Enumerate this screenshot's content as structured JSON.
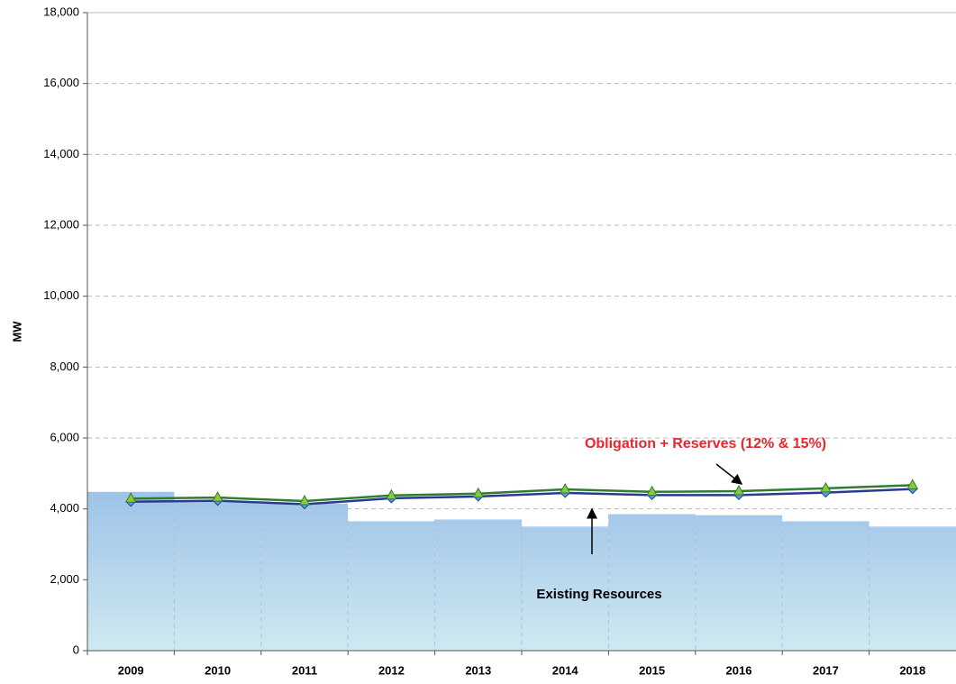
{
  "chart_data": {
    "type": "bar-line",
    "y_label": "MW",
    "categories": [
      "2009",
      "2010",
      "2011",
      "2012",
      "2013",
      "2014",
      "2015",
      "2016",
      "2017",
      "2018"
    ],
    "ylim": [
      0,
      18000
    ],
    "yticks": [
      0,
      {
        "value": 2000,
        "label": "2,000"
      },
      {
        "value": 4000,
        "label": "4,000"
      },
      {
        "value": 6000,
        "label": "6,000"
      },
      {
        "value": 8000,
        "label": "8,000"
      },
      {
        "value": 10000,
        "label": "10,000"
      },
      {
        "value": 12000,
        "label": "12,000"
      },
      {
        "value": 14000,
        "label": "14,000"
      },
      {
        "value": 16000,
        "label": "16,000"
      },
      {
        "value": 18000,
        "label": "18,000"
      }
    ],
    "grid": true,
    "bars": {
      "color": "#9ec3e8",
      "values": [
        4480,
        4200,
        4150,
        3650,
        3700,
        3500,
        3850,
        3820,
        3650,
        3500
      ]
    },
    "series": [
      {
        "color": "#2b3990",
        "marker": "diamond",
        "values": [
          4200,
          4230,
          4130,
          4300,
          4350,
          4450,
          4390,
          4390,
          4460,
          4560
        ]
      },
      {
        "color": "#2e7d32",
        "marker": "triangle",
        "values": [
          4290,
          4320,
          4220,
          4380,
          4430,
          4550,
          4480,
          4500,
          4580,
          4670
        ]
      }
    ],
    "annotations": [
      "Obligation + Reserves (12% & 15%)",
      "Existing Resources"
    ]
  }
}
